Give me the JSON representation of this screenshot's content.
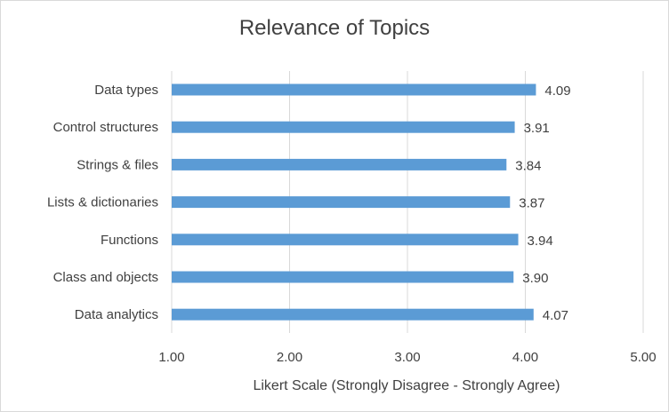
{
  "chart_data": {
    "type": "bar",
    "orientation": "horizontal",
    "title": "Relevance of Topics",
    "xlabel": "Likert Scale (Strongly Disagree - Strongly Agree)",
    "ylabel": "",
    "categories": [
      "Data types",
      "Control structures",
      "Strings & files",
      "Lists & dictionaries",
      "Functions",
      "Class and objects",
      "Data analytics"
    ],
    "values": [
      4.09,
      3.91,
      3.84,
      3.87,
      3.94,
      3.9,
      4.07
    ],
    "data_labels": [
      "4.09",
      "3.91",
      "3.84",
      "3.87",
      "3.94",
      "3.90",
      "4.07"
    ],
    "xlim": [
      1.0,
      5.0
    ],
    "xticks": [
      1.0,
      2.0,
      3.0,
      4.0,
      5.0
    ],
    "xtick_labels": [
      "1.00",
      "2.00",
      "3.00",
      "4.00",
      "5.00"
    ],
    "grid": "vertical",
    "legend": "none",
    "bar_color": "#5b9bd5",
    "grid_color": "#d9d9d9",
    "text_color": "#404040"
  }
}
